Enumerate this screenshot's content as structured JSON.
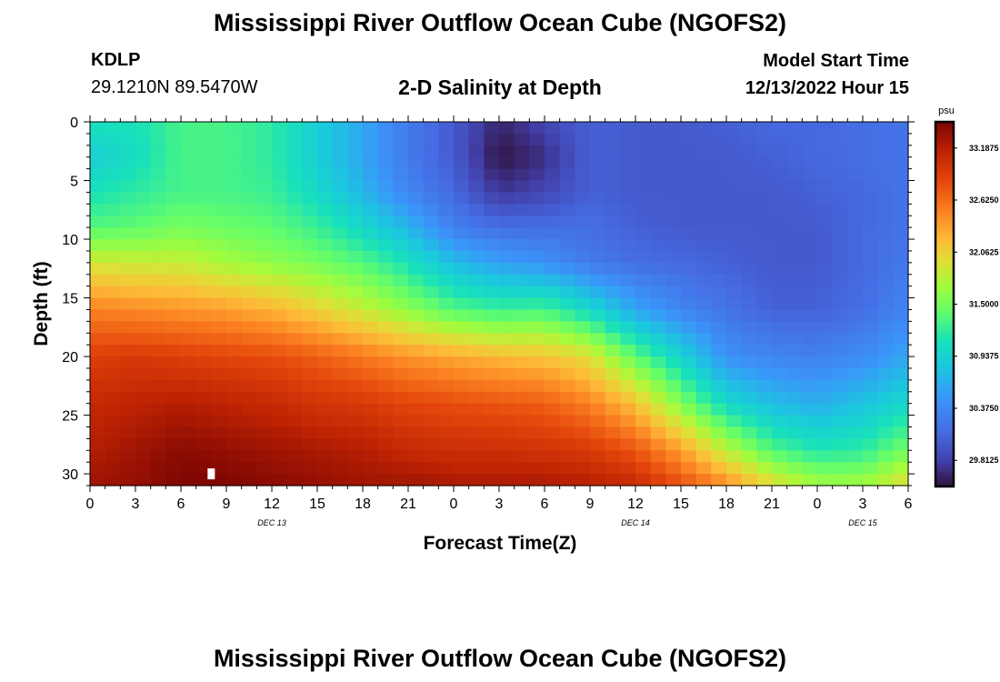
{
  "header": {
    "title": "Mississippi River Outflow Ocean Cube (NGOFS2)",
    "station_id": "KDLP",
    "station_coords": "29.1210N  89.5470W",
    "subtitle": "2-D Salinity at Depth",
    "model_start_label": "Model Start Time",
    "model_start_value": "12/13/2022 Hour 15"
  },
  "footer": {
    "title": "Mississippi River Outflow Ocean Cube (NGOFS2)"
  },
  "chart_data": {
    "type": "heatmap",
    "xlabel": "Forecast Time(Z)",
    "ylabel": "Depth (ft)",
    "xlim": [
      0,
      54
    ],
    "ylim": [
      0,
      31
    ],
    "x_ticks": [
      0,
      3,
      6,
      9,
      12,
      15,
      18,
      21,
      24,
      27,
      30,
      33,
      36,
      39,
      42,
      45,
      48,
      51,
      54
    ],
    "x_tick_labels": [
      "0",
      "3",
      "6",
      "9",
      "12",
      "15",
      "18",
      "21",
      "0",
      "3",
      "6",
      "9",
      "12",
      "15",
      "18",
      "21",
      "0",
      "3",
      "6"
    ],
    "date_labels": [
      {
        "label": "DEC 13",
        "x": 12
      },
      {
        "label": "DEC 14",
        "x": 36
      },
      {
        "label": "DEC 15",
        "x": 51
      }
    ],
    "y_ticks": [
      0,
      5,
      10,
      15,
      20,
      25,
      30
    ],
    "y_tick_labels": [
      "0",
      "5",
      "10",
      "15",
      "20",
      "25",
      "30"
    ],
    "colorbar": {
      "unit": "psu",
      "min": 29.53,
      "max": 33.47,
      "tick_values": [
        33.1875,
        32.625,
        32.0625,
        31.5,
        30.9375,
        30.375,
        29.8125
      ],
      "tick_labels": [
        "33.1875",
        "32.6250",
        "32.0625",
        "31.5000",
        "30.9375",
        "30.3750",
        "29.8125"
      ]
    },
    "x_nodes": [
      0,
      3,
      6,
      9,
      12,
      15,
      18,
      21,
      24,
      27,
      30,
      33,
      36,
      39,
      42,
      45,
      48,
      51,
      54
    ],
    "profiles": [
      {
        "depths": [
          0,
          3,
          6,
          9,
          12,
          16,
          20,
          24,
          28,
          31
        ],
        "values": [
          31.1,
          30.9,
          31.1,
          31.35,
          31.9,
          32.5,
          32.9,
          33.1,
          33.2,
          33.3
        ]
      },
      {
        "depths": [
          0,
          3,
          6,
          9,
          12,
          16,
          20,
          24,
          28,
          31
        ],
        "values": [
          31.1,
          31.05,
          31.2,
          31.4,
          31.85,
          32.45,
          32.95,
          33.15,
          33.3,
          33.35
        ]
      },
      {
        "depths": [
          0,
          3,
          6,
          9,
          12,
          16,
          20,
          24,
          28,
          31
        ],
        "values": [
          31.3,
          31.3,
          31.3,
          31.5,
          31.85,
          32.4,
          32.9,
          33.2,
          33.4,
          33.45
        ]
      },
      {
        "depths": [
          0,
          3,
          6,
          9,
          12,
          16,
          20,
          24,
          28,
          31
        ],
        "values": [
          31.3,
          31.3,
          31.3,
          31.45,
          31.7,
          32.35,
          32.85,
          33.15,
          33.35,
          33.45
        ]
      },
      {
        "depths": [
          0,
          3,
          6,
          9,
          12,
          16,
          20,
          24,
          28,
          31
        ],
        "values": [
          31.2,
          31.2,
          31.25,
          31.4,
          31.6,
          32.25,
          32.8,
          33.1,
          33.3,
          33.4
        ]
      },
      {
        "depths": [
          0,
          3,
          6,
          9,
          12,
          16,
          20,
          24,
          28,
          31
        ],
        "values": [
          30.9,
          30.9,
          31.0,
          31.25,
          31.5,
          32.05,
          32.7,
          33.0,
          33.25,
          33.35
        ]
      },
      {
        "depths": [
          0,
          3,
          6,
          9,
          12,
          16,
          20,
          24,
          28,
          31
        ],
        "values": [
          30.6,
          30.6,
          30.7,
          31.0,
          31.35,
          31.85,
          32.55,
          32.95,
          33.2,
          33.3
        ]
      },
      {
        "depths": [
          0,
          3,
          6,
          9,
          12,
          16,
          20,
          24,
          28,
          31
        ],
        "values": [
          30.25,
          30.25,
          30.35,
          30.7,
          31.1,
          31.6,
          32.4,
          32.85,
          33.1,
          33.3
        ]
      },
      {
        "depths": [
          0,
          3,
          6,
          9,
          12,
          16,
          20,
          24,
          28,
          31
        ],
        "values": [
          30.0,
          30.0,
          30.1,
          30.3,
          30.75,
          31.35,
          32.3,
          32.8,
          33.05,
          33.25
        ]
      },
      {
        "depths": [
          0,
          3,
          6,
          9,
          12,
          16,
          20,
          24,
          28,
          31
        ],
        "values": [
          29.65,
          29.55,
          29.75,
          30.15,
          30.55,
          31.25,
          32.2,
          32.75,
          33.05,
          33.25
        ]
      },
      {
        "depths": [
          0,
          3,
          6,
          9,
          12,
          16,
          20,
          24,
          28,
          31
        ],
        "values": [
          29.85,
          29.7,
          29.85,
          30.15,
          30.45,
          31.3,
          32.15,
          32.7,
          33.0,
          33.25
        ]
      },
      {
        "depths": [
          0,
          3,
          6,
          9,
          12,
          16,
          20,
          24,
          28,
          31
        ],
        "values": [
          30.05,
          30.05,
          30.05,
          30.15,
          30.25,
          31.0,
          31.95,
          32.5,
          32.95,
          33.2
        ]
      },
      {
        "depths": [
          0,
          3,
          6,
          9,
          12,
          16,
          20,
          24,
          28,
          31
        ],
        "values": [
          30.0,
          30.0,
          30.0,
          30.05,
          30.15,
          30.6,
          31.4,
          32.15,
          32.75,
          33.1
        ]
      },
      {
        "depths": [
          0,
          3,
          6,
          9,
          12,
          16,
          20,
          24,
          28,
          31
        ],
        "values": [
          30.0,
          30.0,
          30.0,
          30.0,
          30.1,
          30.35,
          30.95,
          31.55,
          32.35,
          32.8
        ]
      },
      {
        "depths": [
          0,
          3,
          6,
          9,
          12,
          16,
          20,
          24,
          28,
          31
        ],
        "values": [
          30.05,
          30.0,
          30.0,
          30.0,
          30.05,
          30.2,
          30.45,
          31.0,
          31.8,
          32.45
        ]
      },
      {
        "depths": [
          0,
          3,
          6,
          9,
          12,
          16,
          20,
          24,
          28,
          31
        ],
        "values": [
          30.1,
          30.05,
          30.0,
          30.0,
          30.0,
          30.05,
          30.35,
          30.75,
          31.35,
          32.0
        ]
      },
      {
        "depths": [
          0,
          3,
          6,
          9,
          12,
          16,
          20,
          24,
          28,
          31
        ],
        "values": [
          30.1,
          30.1,
          30.05,
          30.0,
          30.0,
          30.05,
          30.3,
          30.65,
          31.15,
          31.7
        ]
      },
      {
        "depths": [
          0,
          3,
          6,
          9,
          12,
          16,
          20,
          24,
          28,
          31
        ],
        "values": [
          30.15,
          30.15,
          30.1,
          30.1,
          30.1,
          30.15,
          30.4,
          30.8,
          31.2,
          31.7
        ]
      },
      {
        "depths": [
          0,
          3,
          6,
          9,
          12,
          16,
          20,
          24,
          28,
          31
        ],
        "values": [
          30.2,
          30.2,
          30.2,
          30.2,
          30.25,
          30.35,
          30.6,
          31.0,
          31.5,
          32.0
        ]
      }
    ],
    "marker": {
      "x": 8,
      "depth": 30
    }
  }
}
